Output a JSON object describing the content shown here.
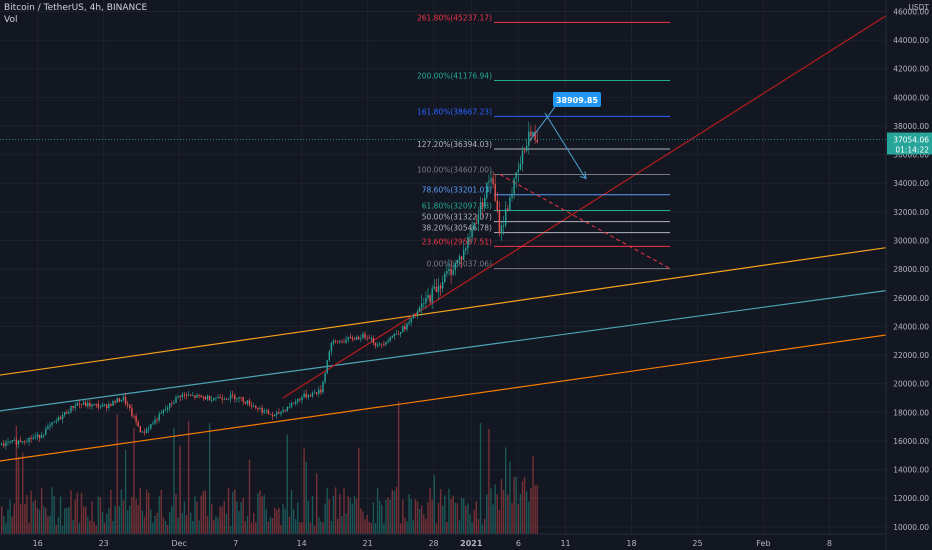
{
  "header": {
    "title": "Bitcoin / TetherUS, 4h, BINANCE",
    "volume_label": "Vol"
  },
  "axis": {
    "currency": "USDT",
    "y_ticks": [
      "46000.00",
      "44000.00",
      "42000.00",
      "40000.00",
      "38000.00",
      "36000.00",
      "34000.00",
      "32000.00",
      "30000.00",
      "28000.00",
      "26000.00",
      "24000.00",
      "22000.00",
      "20000.00",
      "18000.00",
      "16000.00",
      "14000.00",
      "12000.00",
      "10000.00"
    ],
    "x_ticks": [
      "16",
      "23",
      "Dec",
      "7",
      "14",
      "21",
      "28",
      "2021",
      "6",
      "11",
      "18",
      "25",
      "Feb",
      "8"
    ]
  },
  "price_tag": {
    "price": "37054.06",
    "countdown": "01:14:22"
  },
  "callout": {
    "text": "38909.85"
  },
  "fib_levels": [
    {
      "label": "261.80%(45237.17)",
      "value": 45237.17,
      "color": "#f23645"
    },
    {
      "label": "200.00%(41176.94)",
      "value": 41176.94,
      "color": "#22ab94"
    },
    {
      "label": "161.80%(38667.23)",
      "value": 38667.23,
      "color": "#2962ff"
    },
    {
      "label": "127.20%(36394.03)",
      "value": 36394.03,
      "color": "#b2b5be"
    },
    {
      "label": "100.00%(34607.00)",
      "value": 34607.0,
      "color": "#787b86"
    },
    {
      "label": "78.60%(33201.03)",
      "value": 33201.03,
      "color": "#5b9cf6"
    },
    {
      "label": "61.80%(32097.28)",
      "value": 32097.28,
      "color": "#22ab94"
    },
    {
      "label": "50.00%(31322.07)",
      "value": 31322.07,
      "color": "#b2b5be"
    },
    {
      "label": "38.20%(30546.78)",
      "value": 30546.78,
      "color": "#b2b5be"
    },
    {
      "label": "23.60%(29587.51)",
      "value": 29587.51,
      "color": "#f23645"
    },
    {
      "label": "0.00%(28037.06)",
      "value": 28037.06,
      "color": "#787b86"
    }
  ],
  "chart_data": {
    "type": "candlestick",
    "title": "Bitcoin / TetherUS, 4h, BINANCE",
    "ylim": [
      9500,
      46800
    ],
    "current_price": 37054.06,
    "close_path": [
      [
        "2020-11-12",
        15700
      ],
      [
        "2020-11-16",
        16300
      ],
      [
        "2020-11-20",
        18600
      ],
      [
        "2020-11-23",
        18400
      ],
      [
        "2020-11-25",
        19000
      ],
      [
        "2020-11-27",
        16500
      ],
      [
        "2020-12-01",
        19200
      ],
      [
        "2020-12-04",
        19000
      ],
      [
        "2020-12-07",
        19100
      ],
      [
        "2020-12-11",
        17700
      ],
      [
        "2020-12-14",
        19100
      ],
      [
        "2020-12-16",
        19500
      ],
      [
        "2020-12-17",
        22800
      ],
      [
        "2020-12-21",
        23400
      ],
      [
        "2020-12-22",
        22600
      ],
      [
        "2020-12-25",
        24000
      ],
      [
        "2020-12-28",
        26500
      ],
      [
        "2020-12-31",
        29000
      ],
      [
        "2021-01-02",
        32500
      ],
      [
        "2021-01-03",
        34600
      ],
      [
        "2021-01-04",
        30500
      ],
      [
        "2021-01-05",
        33000
      ],
      [
        "2021-01-06",
        35000
      ],
      [
        "2021-01-07",
        37500
      ],
      [
        "2021-01-08",
        37054
      ]
    ],
    "trend_lines": [
      {
        "name": "upper channel",
        "points": [
          [
            "2020-11-12",
            20600
          ],
          [
            "2021-02-14",
            29500
          ]
        ],
        "color": "#f7a21b"
      },
      {
        "name": "middle channel",
        "points": [
          [
            "2020-11-12",
            18100
          ],
          [
            "2021-02-14",
            26500
          ]
        ],
        "color": "#4ba5b5"
      },
      {
        "name": "lower channel",
        "points": [
          [
            "2020-11-12",
            14600
          ],
          [
            "2021-02-14",
            23400
          ]
        ],
        "color": "#f57c00"
      },
      {
        "name": "support",
        "points": [
          [
            "2020-12-12",
            19000
          ],
          [
            "2021-02-14",
            45700
          ]
        ],
        "color": "#b71c1c"
      }
    ]
  }
}
